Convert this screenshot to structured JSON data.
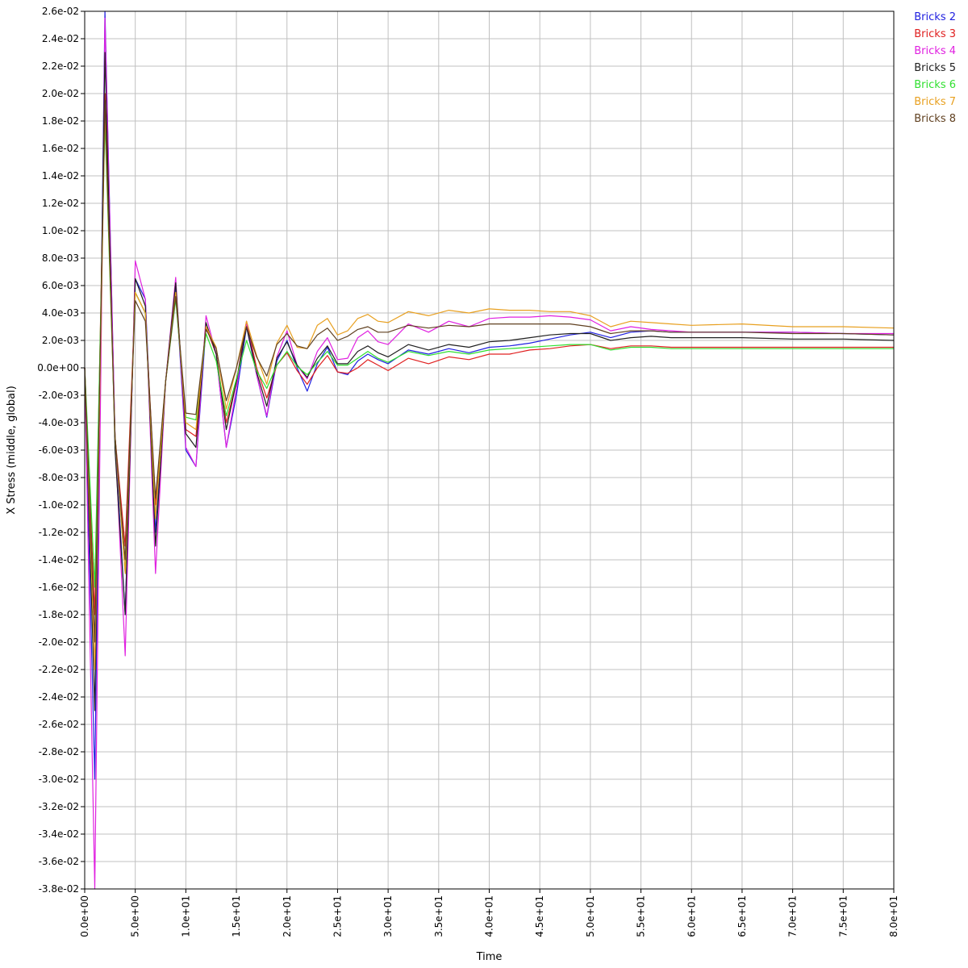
{
  "chart_data": {
    "type": "line",
    "title": "",
    "xlabel": "Time",
    "ylabel": "X Stress (middle, global)",
    "xlim": [
      0,
      80
    ],
    "ylim": [
      -0.038,
      0.026
    ],
    "grid": true,
    "legend_position": "top-right outside",
    "y_ticks": [
      "2.6e-02",
      "2.4e-02",
      "2.2e-02",
      "2.0e-02",
      "1.8e-02",
      "1.6e-02",
      "1.4e-02",
      "1.2e-02",
      "1.0e-02",
      "8.0e-03",
      "6.0e-03",
      "4.0e-03",
      "2.0e-03",
      "0.0e+00",
      "-2.0e-03",
      "-4.0e-03",
      "-6.0e-03",
      "-8.0e-03",
      "-1.0e-02",
      "-1.2e-02",
      "-1.4e-02",
      "-1.6e-02",
      "-1.8e-02",
      "-2.0e-02",
      "-2.2e-02",
      "-2.4e-02",
      "-2.6e-02",
      "-2.8e-02",
      "-3.0e-02",
      "-3.2e-02",
      "-3.4e-02",
      "-3.6e-02",
      "-3.8e-02"
    ],
    "x_ticks": [
      "0.0e+00",
      "5.0e+00",
      "1.0e+01",
      "1.5e+01",
      "2.0e+01",
      "2.5e+01",
      "3.0e+01",
      "3.5e+01",
      "4.0e+01",
      "4.5e+01",
      "5.0e+01",
      "5.5e+01",
      "6.0e+01",
      "6.5e+01",
      "7.0e+01",
      "7.5e+01",
      "8.0e+01"
    ],
    "x": [
      0,
      1,
      2,
      3,
      4,
      5,
      6,
      7,
      8,
      9,
      10,
      11,
      12,
      13,
      14,
      15,
      16,
      17,
      18,
      19,
      20,
      21,
      22,
      23,
      24,
      25,
      26,
      27,
      28,
      29,
      30,
      32,
      34,
      36,
      38,
      40,
      42,
      44,
      46,
      48,
      50,
      52,
      54,
      56,
      58,
      60,
      65,
      70,
      75,
      80
    ],
    "series": [
      {
        "name": "Bricks 2",
        "color": "#2020e0",
        "values": [
          0,
          -0.03,
          0.026,
          -0.005,
          -0.018,
          0.0065,
          0.005,
          -0.012,
          -0.001,
          0.006,
          -0.006,
          -0.0072,
          0.003,
          0.001,
          -0.0058,
          -0.002,
          0.003,
          -0.0005,
          -0.0036,
          0.0005,
          0.002,
          0,
          -0.0017,
          0.0003,
          0.0015,
          -0.0003,
          -0.0005,
          0.0005,
          0.001,
          0.0006,
          0.0003,
          0.0013,
          0.001,
          0.0014,
          0.0011,
          0.0015,
          0.0016,
          0.0018,
          0.0021,
          0.0024,
          0.0026,
          0.0022,
          0.0026,
          0.0027,
          0.0026,
          0.0026,
          0.0026,
          0.0026,
          0.0025,
          0.0024
        ]
      },
      {
        "name": "Bricks 3",
        "color": "#e02020",
        "values": [
          0,
          -0.018,
          0.02,
          -0.005,
          -0.013,
          0.0055,
          0.004,
          -0.01,
          -0.001,
          0.0055,
          -0.0045,
          -0.005,
          0.003,
          0.001,
          -0.004,
          -0.001,
          0.0034,
          0,
          -0.0022,
          0.0002,
          0.0011,
          -0.0002,
          -0.0012,
          0,
          0.0009,
          -0.0003,
          -0.0004,
          0,
          0.0006,
          0.0002,
          -0.0002,
          0.0007,
          0.0003,
          0.0008,
          0.0006,
          0.001,
          0.001,
          0.0013,
          0.0014,
          0.0016,
          0.0017,
          0.0014,
          0.0016,
          0.0016,
          0.0015,
          0.0015,
          0.0015,
          0.0015,
          0.0015,
          0.0015
        ]
      },
      {
        "name": "Bricks 4",
        "color": "#e020e0",
        "values": [
          0,
          -0.038,
          0.0255,
          -0.005,
          -0.021,
          0.0078,
          0.005,
          -0.015,
          -0.001,
          0.0066,
          -0.0058,
          -0.0072,
          0.0038,
          0.001,
          -0.0058,
          -0.0015,
          0.0033,
          -0.0005,
          -0.0035,
          0.0008,
          0.0027,
          0.0002,
          -0.0008,
          0.0012,
          0.0022,
          0.0006,
          0.0007,
          0.0022,
          0.0027,
          0.0019,
          0.0017,
          0.0032,
          0.0026,
          0.0034,
          0.003,
          0.0036,
          0.0037,
          0.0037,
          0.0038,
          0.0037,
          0.0035,
          0.0027,
          0.003,
          0.0028,
          0.0027,
          0.0026,
          0.0026,
          0.0026,
          0.0025,
          0.0025
        ]
      },
      {
        "name": "Bricks 5",
        "color": "#202020",
        "values": [
          0,
          -0.025,
          0.023,
          -0.006,
          -0.018,
          0.0065,
          0.0045,
          -0.013,
          -0.001,
          0.0062,
          -0.0048,
          -0.0058,
          0.0033,
          0.001,
          -0.0045,
          -0.001,
          0.003,
          -0.0003,
          -0.0028,
          0.0007,
          0.0019,
          0.0002,
          -0.0007,
          0.0007,
          0.0016,
          0.0003,
          0.0003,
          0.0012,
          0.0016,
          0.0011,
          0.0008,
          0.0017,
          0.0013,
          0.0017,
          0.0015,
          0.0019,
          0.002,
          0.0022,
          0.0024,
          0.0025,
          0.0025,
          0.002,
          0.0022,
          0.0023,
          0.0022,
          0.0022,
          0.0022,
          0.0021,
          0.0021,
          0.002
        ]
      },
      {
        "name": "Bricks 6",
        "color": "#30e030",
        "values": [
          0,
          -0.016,
          0.018,
          -0.005,
          -0.015,
          0.0055,
          0.004,
          -0.011,
          -0.001,
          0.005,
          -0.0036,
          -0.0038,
          0.0025,
          0.0005,
          -0.0035,
          -0.0008,
          0.002,
          -0.0002,
          -0.0015,
          0.0002,
          0.0012,
          0.0001,
          -0.0005,
          0.0004,
          0.0012,
          0.0002,
          0.0002,
          0.0007,
          0.0012,
          0.0007,
          0.0004,
          0.0012,
          0.0009,
          0.0012,
          0.001,
          0.0013,
          0.0014,
          0.0015,
          0.0016,
          0.0017,
          0.0017,
          0.0013,
          0.0015,
          0.0015,
          0.0014,
          0.0014,
          0.0014,
          0.0014,
          0.0014,
          0.0014
        ]
      },
      {
        "name": "Bricks 7",
        "color": "#e8a020",
        "values": [
          0,
          -0.022,
          0.019,
          -0.005,
          -0.015,
          0.0055,
          0.004,
          -0.011,
          -0.001,
          0.0055,
          -0.004,
          -0.0045,
          0.003,
          0.0015,
          -0.003,
          0,
          0.0034,
          0.0009,
          -0.0012,
          0.0018,
          0.0031,
          0.0015,
          0.0014,
          0.0031,
          0.0036,
          0.0024,
          0.0027,
          0.0036,
          0.0039,
          0.0034,
          0.0033,
          0.0041,
          0.0038,
          0.0042,
          0.004,
          0.0043,
          0.0042,
          0.0042,
          0.0041,
          0.0041,
          0.0038,
          0.003,
          0.0034,
          0.0033,
          0.0032,
          0.0031,
          0.0032,
          0.003,
          0.003,
          0.0029
        ]
      },
      {
        "name": "Bricks 8",
        "color": "#604020",
        "values": [
          0,
          -0.02,
          0.0195,
          -0.005,
          -0.014,
          0.0049,
          0.0034,
          -0.0095,
          -0.001,
          0.0052,
          -0.0033,
          -0.0034,
          0.0028,
          0.0014,
          -0.0024,
          0,
          0.003,
          0.0008,
          -0.0006,
          0.0017,
          0.0025,
          0.0016,
          0.0014,
          0.0024,
          0.0029,
          0.002,
          0.0023,
          0.0028,
          0.003,
          0.0026,
          0.0026,
          0.0031,
          0.0029,
          0.0031,
          0.003,
          0.0032,
          0.0032,
          0.0032,
          0.0032,
          0.0032,
          0.003,
          0.0025,
          0.0027,
          0.0027,
          0.0026,
          0.0026,
          0.0026,
          0.0025,
          0.0025,
          0.0024
        ]
      }
    ]
  }
}
